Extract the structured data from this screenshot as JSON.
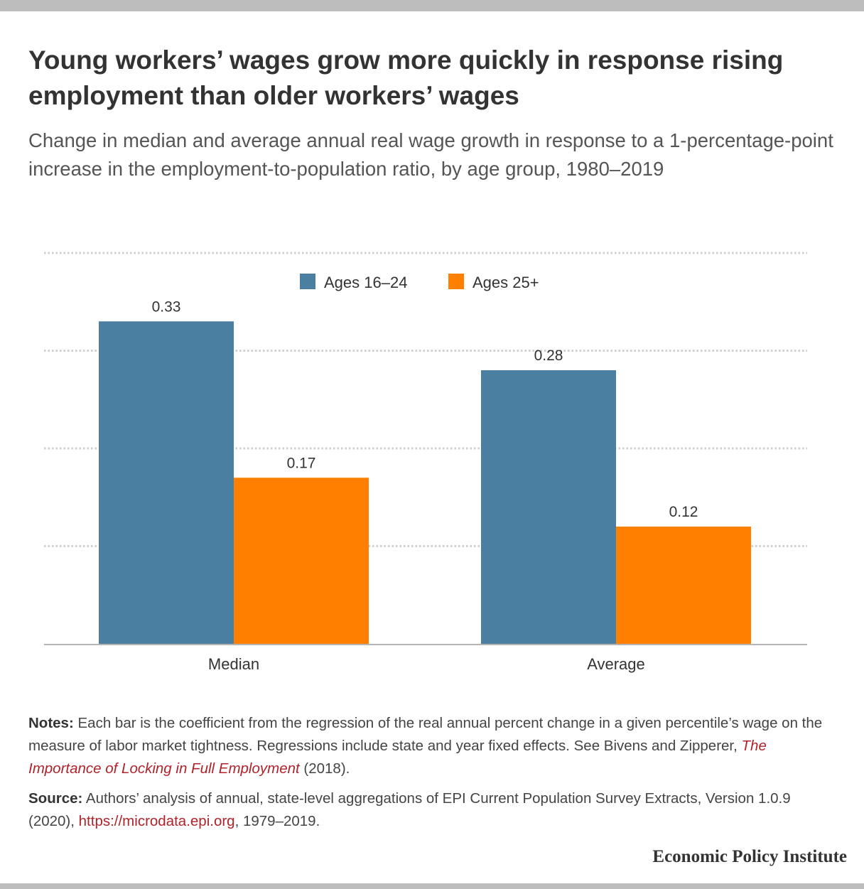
{
  "header": {
    "title": "Young workers’ wages grow more quickly in response rising employment than older workers’ wages",
    "subtitle": "Change in median and average annual real wage growth in response to a 1-percentage-point increase in the employment-to-population ratio, by age group, 1980–2019"
  },
  "chart_data": {
    "type": "bar",
    "categories": [
      "Median",
      "Average"
    ],
    "series": [
      {
        "name": "Ages 16–24",
        "values": [
          0.33,
          0.28
        ],
        "value_labels": [
          "0.33",
          "0.28"
        ],
        "color": "#4a7fa2"
      },
      {
        "name": "Ages 25+",
        "values": [
          0.17,
          0.12
        ],
        "value_labels": [
          "0.17",
          "0.12"
        ],
        "color": "#ff8000"
      }
    ],
    "title": "",
    "xlabel": "",
    "ylabel": "",
    "ylim": [
      0,
      0.4
    ],
    "yticks": [
      0,
      0.1,
      0.2,
      0.3,
      0.4
    ],
    "y_tick_labels_shown": false,
    "grid": true,
    "grid_style": "dotted",
    "legend_position": "top-center"
  },
  "notes": {
    "notes_label": "Notes:",
    "notes_text": " Each bar is the coefficient from the regression of the real annual percent change in a given percentile’s wage on the measure of labor market tightness. Regressions include state and year fixed effects. See Bivens and Zipperer, ",
    "notes_link": "The Importance of Locking in Full Employment",
    "notes_tail": " (2018).",
    "source_label": "Source:",
    "source_text": " Authors’ analysis of annual, state-level aggregations of EPI Current Population Survey Extracts, Version 1.0.9 (2020), ",
    "source_link": "https://microdata.epi.org",
    "source_tail": ", 1979–2019."
  },
  "footer": {
    "brand": "Economic Policy Institute"
  }
}
